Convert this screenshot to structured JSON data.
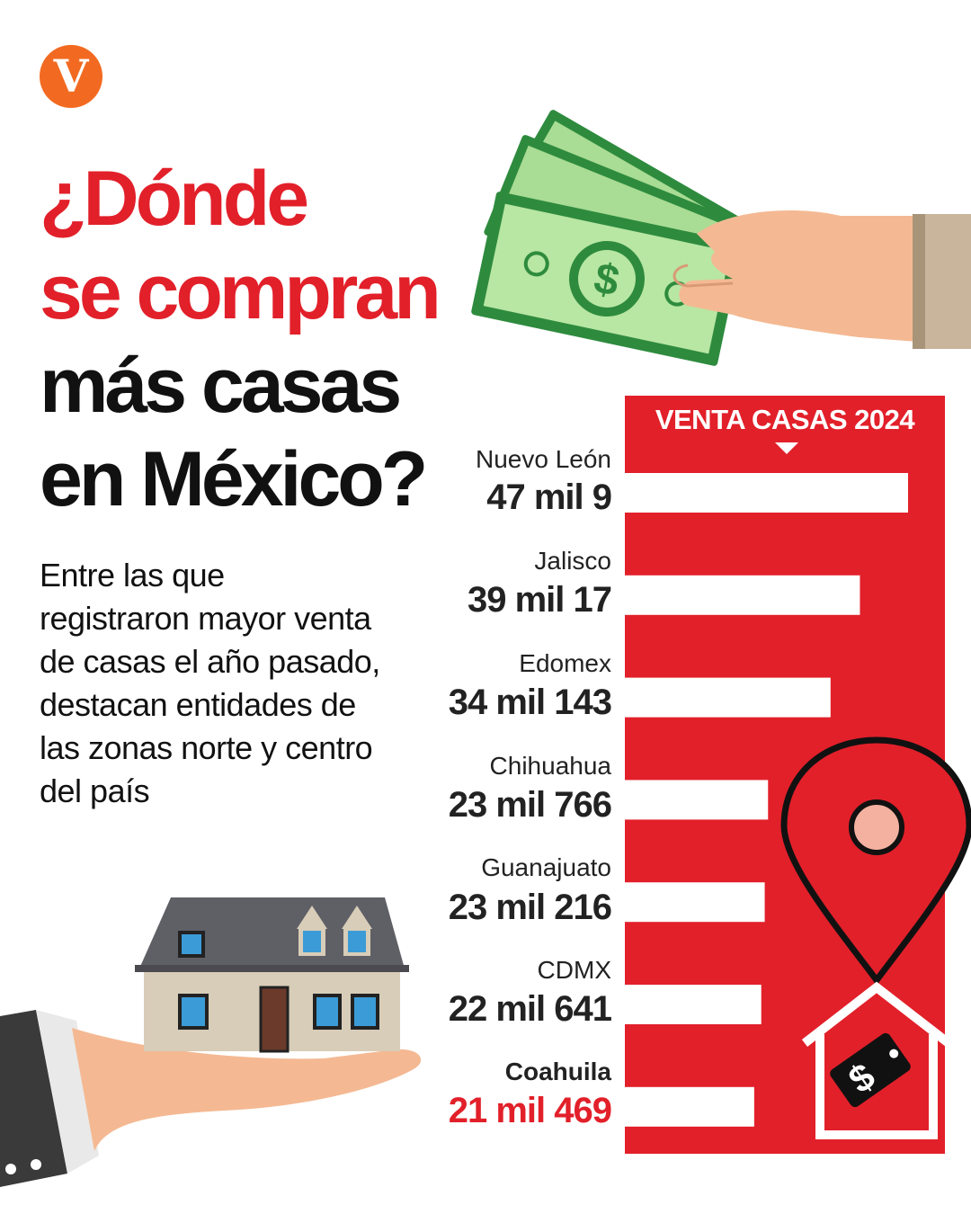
{
  "logo": {
    "letter": "V",
    "color": "#f26a21"
  },
  "title": {
    "lines": [
      {
        "text": "¿Dónde",
        "color": "red"
      },
      {
        "text": "se compran",
        "color": "red"
      },
      {
        "text": "más casas",
        "color": "black"
      },
      {
        "text": "en México?",
        "color": "black"
      }
    ]
  },
  "subtitle": "Entre las que registraron mayor venta de casas el año pasado, destacan entidades de las zonas norte y centro del país",
  "colors": {
    "accent": "#e2202a",
    "bar": "#ffffff",
    "text": "#222222"
  },
  "illustrations": [
    "money-hand-icon",
    "house-hand-icon",
    "location-pin-icon",
    "house-price-tag-icon"
  ],
  "chart_data": {
    "type": "bar",
    "orientation": "horizontal",
    "title": "VENTA CASAS 2024",
    "categories": [
      "Nuevo León",
      "Jalisco",
      "Edomex",
      "Chihuahua",
      "Guanajuato",
      "CDMX",
      "Coahuila"
    ],
    "values": [
      47009,
      39017,
      34143,
      23766,
      23216,
      22641,
      21469
    ],
    "value_labels": [
      "47 mil 9",
      "39 mil 17",
      "34 mil 143",
      "23 mil 766",
      "23 mil 216",
      "22 mil 641",
      "21 mil 469"
    ],
    "highlight_index": 6
  }
}
